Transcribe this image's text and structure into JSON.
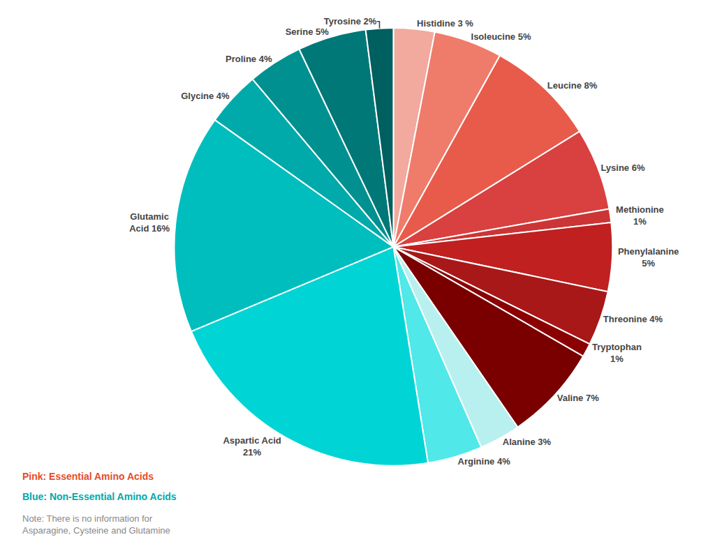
{
  "chart_data": {
    "type": "pie",
    "categories": [
      "Histidine 3 %",
      "Isoleucine 5%",
      "Leucine 8%",
      "Lysine 6%",
      "Methionine\n1%",
      "Phenylalanine\n5%",
      "Threonine 4%",
      "Tryptophan\n1%",
      "Valine 7%",
      "Alanine 3%",
      "Arginine 4%",
      "Aspartic Acid\n21%",
      "Glutamic\nAcid 16%",
      "Glycine 4%",
      "Proline 4%",
      "Serine 5%",
      "Tyrosine 2%"
    ],
    "values": [
      3,
      5,
      8,
      6,
      1,
      5,
      4,
      1,
      7,
      3,
      4,
      21,
      16,
      4,
      4,
      5,
      2
    ],
    "colors": [
      "#F2A99E",
      "#EF7B6B",
      "#E85B4A",
      "#D94040",
      "#CC3535",
      "#C02020",
      "#A81818",
      "#8B0000",
      "#7A0000",
      "#B8F0F0",
      "#50E8E8",
      "#00D4D4",
      "#00BEBE",
      "#00AAAA",
      "#009090",
      "#007878",
      "#005F5F"
    ],
    "data_labels": true,
    "legend": false,
    "annotations": [
      {
        "text": "Pink: Essential Amino Acids",
        "color": "#E84B2A"
      },
      {
        "text": "Blue: Non-Essential Amino Acids",
        "color": "#00AAAA"
      },
      {
        "text": "Note: There is no information for\nAsparagine, Cysteine and Glutamine",
        "color": "#888888"
      }
    ]
  }
}
